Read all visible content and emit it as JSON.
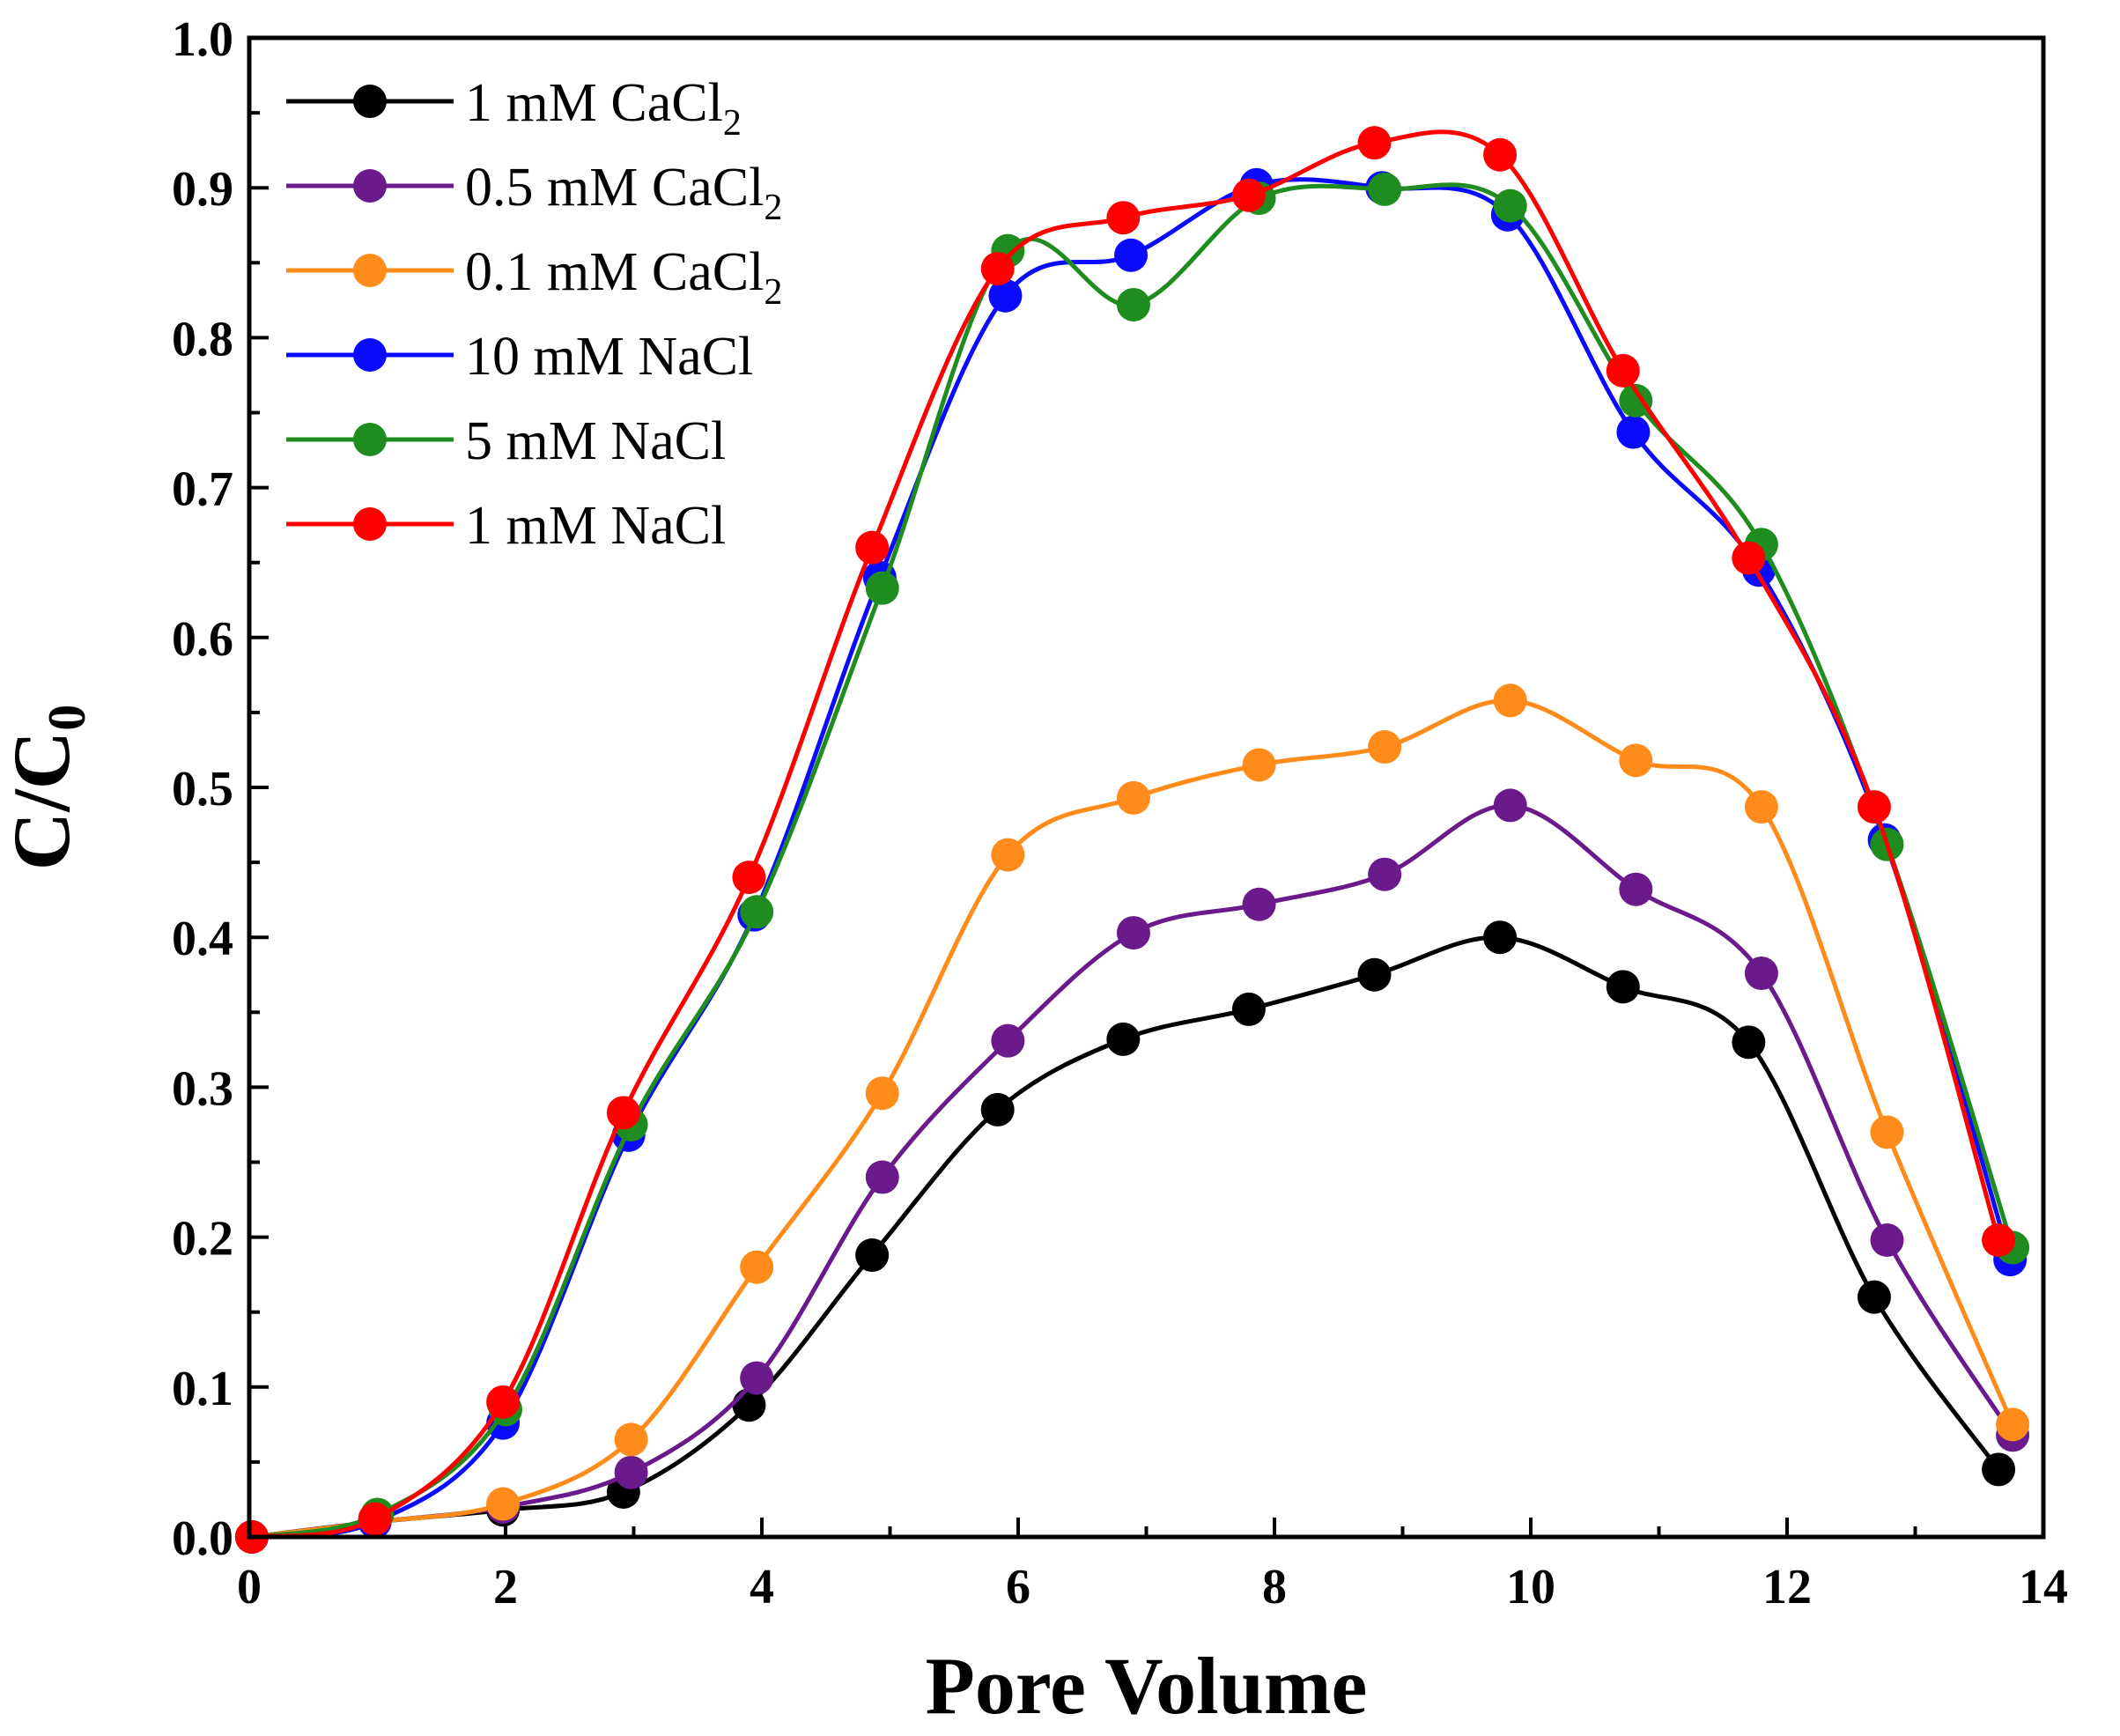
{
  "chart_data": {
    "type": "line",
    "title": "",
    "xlabel": "Pore Volume",
    "ylabel_main": "C/C",
    "ylabel_sub": "0",
    "xlim": [
      0,
      14
    ],
    "ylim": [
      0,
      1.0
    ],
    "xticks": [
      0,
      2,
      4,
      6,
      8,
      10,
      12,
      14
    ],
    "yticks": [
      0.0,
      0.1,
      0.2,
      0.3,
      0.4,
      0.5,
      0.6,
      0.7,
      0.8,
      0.9,
      1.0
    ],
    "xtick_labels": [
      "0",
      "2",
      "4",
      "6",
      "8",
      "10",
      "12",
      "14"
    ],
    "ytick_labels": [
      "0.0",
      "0.1",
      "0.2",
      "0.3",
      "0.4",
      "0.5",
      "0.6",
      "0.7",
      "0.8",
      "0.9",
      "1.0"
    ],
    "legend_position": "top-left",
    "series": [
      {
        "name": "1 mM CaCl2",
        "label_main": "1 mM CaCl",
        "label_sub": "2",
        "color": "#000000",
        "x": [
          0.02,
          0.98,
          1.98,
          2.92,
          3.9,
          4.86,
          5.84,
          6.82,
          7.8,
          8.78,
          9.76,
          10.72,
          11.7,
          12.68,
          13.65
        ],
        "y": [
          0.0,
          0.01,
          0.018,
          0.03,
          0.088,
          0.188,
          0.285,
          0.332,
          0.352,
          0.375,
          0.4,
          0.367,
          0.33,
          0.16,
          0.045
        ]
      },
      {
        "name": "0.5 mM CaCl2",
        "label_main": "0.5 mM CaCl",
        "label_sub": "2",
        "color": "#6b1a8c",
        "x": [
          0.02,
          0.98,
          1.98,
          2.98,
          3.96,
          4.94,
          5.92,
          6.9,
          7.88,
          8.86,
          9.84,
          10.82,
          11.8,
          12.78,
          13.76
        ],
        "y": [
          0.0,
          0.01,
          0.02,
          0.043,
          0.106,
          0.24,
          0.331,
          0.403,
          0.422,
          0.442,
          0.488,
          0.432,
          0.376,
          0.198,
          0.068
        ]
      },
      {
        "name": "0.1 mM CaCl2",
        "label_main": "0.1 mM CaCl",
        "label_sub": "2",
        "color": "#ff8c1a",
        "x": [
          0.02,
          0.98,
          1.98,
          2.98,
          3.96,
          4.94,
          5.92,
          6.9,
          7.88,
          8.86,
          9.84,
          10.82,
          11.8,
          12.78,
          13.76
        ],
        "y": [
          0.0,
          0.01,
          0.022,
          0.065,
          0.18,
          0.296,
          0.455,
          0.493,
          0.515,
          0.527,
          0.558,
          0.518,
          0.487,
          0.27,
          0.075
        ]
      },
      {
        "name": "10 mM NaCl",
        "label_main": "10 mM NaCl",
        "label_sub": "",
        "color": "#0a0aff",
        "x": [
          0.02,
          0.98,
          1.98,
          2.96,
          3.94,
          4.92,
          5.9,
          6.88,
          7.86,
          8.84,
          9.82,
          10.8,
          11.78,
          12.76,
          13.74
        ],
        "y": [
          0.0,
          0.01,
          0.076,
          0.268,
          0.415,
          0.64,
          0.828,
          0.855,
          0.902,
          0.9,
          0.882,
          0.737,
          0.645,
          0.465,
          0.185
        ]
      },
      {
        "name": "5 mM NaCl",
        "label_main": "5 mM NaCl",
        "label_sub": "",
        "color": "#1f8c1f",
        "x": [
          0.02,
          1.0,
          2.0,
          2.98,
          3.96,
          4.94,
          5.92,
          6.9,
          7.88,
          8.86,
          9.84,
          10.82,
          11.8,
          12.78,
          13.76
        ],
        "y": [
          0.0,
          0.015,
          0.085,
          0.275,
          0.417,
          0.633,
          0.858,
          0.822,
          0.893,
          0.899,
          0.888,
          0.758,
          0.662,
          0.462,
          0.193
        ]
      },
      {
        "name": "1 mM NaCl",
        "label_main": "1 mM NaCl",
        "label_sub": "",
        "color": "#ff0000",
        "x": [
          0.02,
          0.98,
          1.98,
          2.92,
          3.9,
          4.86,
          5.84,
          6.82,
          7.8,
          8.78,
          9.76,
          10.72,
          11.7,
          12.68,
          13.65
        ],
        "y": [
          0.0,
          0.012,
          0.09,
          0.283,
          0.44,
          0.66,
          0.846,
          0.88,
          0.895,
          0.93,
          0.922,
          0.778,
          0.653,
          0.487,
          0.198
        ]
      }
    ]
  }
}
